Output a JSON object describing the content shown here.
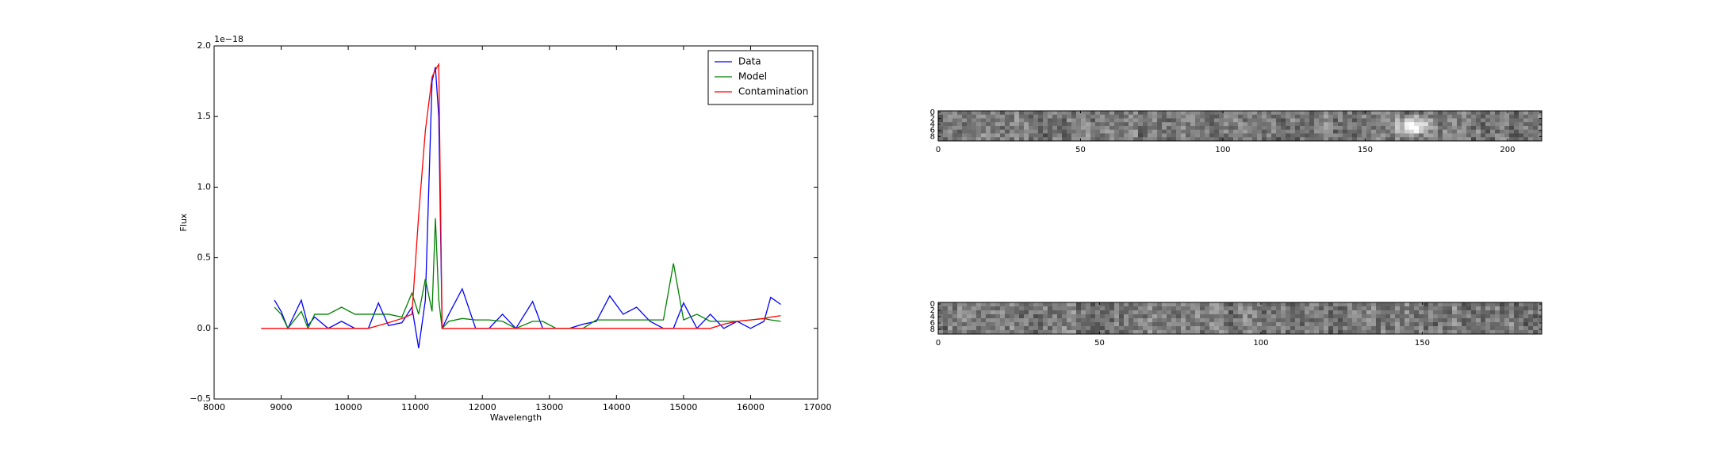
{
  "chart_data": [
    {
      "type": "line",
      "xlabel": "Wavelength",
      "ylabel": "Flux",
      "offset_text": "1e−18",
      "x": [
        8700,
        8900,
        9000,
        9100,
        9300,
        9400,
        9500,
        9700,
        9900,
        10100,
        10300,
        10450,
        10600,
        10800,
        10950,
        11050,
        11150,
        11250,
        11300,
        11350,
        11400,
        11500,
        11700,
        11900,
        12100,
        12300,
        12500,
        12750,
        12900,
        13100,
        13300,
        13500,
        13700,
        13900,
        14100,
        14300,
        14500,
        14700,
        14850,
        15000,
        15200,
        15400,
        15600,
        15800,
        16000,
        16200,
        16300,
        16450
      ],
      "series": [
        {
          "name": "Data",
          "color": "#0000ff",
          "values": [
            null,
            0.2,
            0.12,
            0.0,
            0.2,
            0.02,
            0.08,
            0.0,
            0.05,
            0.0,
            0.0,
            0.18,
            0.02,
            0.04,
            0.15,
            -0.14,
            0.2,
            1.75,
            1.85,
            1.5,
            0.0,
            0.1,
            0.28,
            0.0,
            0.0,
            0.1,
            0.0,
            0.19,
            0.0,
            0.0,
            0.0,
            0.03,
            0.05,
            0.23,
            0.1,
            0.15,
            0.05,
            0.0,
            0.0,
            0.18,
            0.0,
            0.1,
            0.0,
            0.05,
            0.0,
            0.05,
            0.22,
            0.17
          ]
        },
        {
          "name": "Model",
          "color": "#008000",
          "values": [
            null,
            0.15,
            0.1,
            0.0,
            0.12,
            0.0,
            0.1,
            0.1,
            0.15,
            0.1,
            0.1,
            0.1,
            0.1,
            0.08,
            0.25,
            0.1,
            0.35,
            0.12,
            0.78,
            0.2,
            0.0,
            0.05,
            0.07,
            0.06,
            0.06,
            0.05,
            0.0,
            0.05,
            0.05,
            0.0,
            0.0,
            0.0,
            0.06,
            0.06,
            0.06,
            0.06,
            0.06,
            0.06,
            0.46,
            0.06,
            0.1,
            0.05,
            0.05,
            0.05,
            0.06,
            0.07,
            0.06,
            0.05
          ]
        },
        {
          "name": "Contamination",
          "color": "#ff0000",
          "values": [
            0.0,
            0.0,
            0.0,
            0.0,
            0.0,
            0.0,
            0.0,
            0.0,
            0.0,
            0.0,
            0.0,
            0.02,
            0.04,
            0.07,
            0.1,
            0.8,
            1.4,
            1.78,
            1.83,
            1.87,
            0.0,
            0.0,
            0.0,
            0.0,
            0.0,
            0.0,
            0.0,
            0.0,
            0.0,
            0.0,
            0.0,
            0.0,
            0.0,
            0.0,
            0.0,
            0.0,
            0.0,
            0.0,
            0.0,
            0.0,
            0.0,
            0.0,
            0.03,
            0.05,
            0.06,
            0.07,
            0.08,
            0.09
          ]
        }
      ],
      "xlim": [
        8000,
        17000
      ],
      "xticks": [
        8000,
        9000,
        10000,
        11000,
        12000,
        13000,
        14000,
        15000,
        16000,
        17000
      ],
      "ylim": [
        -0.5,
        2.0
      ],
      "yticks": [
        {
          "value": -0.5,
          "label": "−0.5"
        },
        {
          "value": 0.0,
          "label": "0.0"
        },
        {
          "value": 0.5,
          "label": "0.5"
        },
        {
          "value": 1.0,
          "label": "1.0"
        },
        {
          "value": 1.5,
          "label": "1.5"
        },
        {
          "value": 2.0,
          "label": "2.0"
        }
      ],
      "legend": "upper right"
    },
    {
      "type": "image",
      "xlim": [
        0,
        212
      ],
      "xticks": [
        0,
        50,
        100,
        150,
        200
      ],
      "ylim": [
        9.5,
        -0.5
      ],
      "yticks": [
        0,
        2,
        4,
        6,
        8
      ]
    },
    {
      "type": "image",
      "xlim": [
        0,
        187
      ],
      "xticks": [
        0,
        50,
        100,
        150
      ],
      "ylim": [
        9.5,
        -0.5
      ],
      "yticks": [
        0,
        2,
        4,
        6,
        8
      ]
    }
  ]
}
